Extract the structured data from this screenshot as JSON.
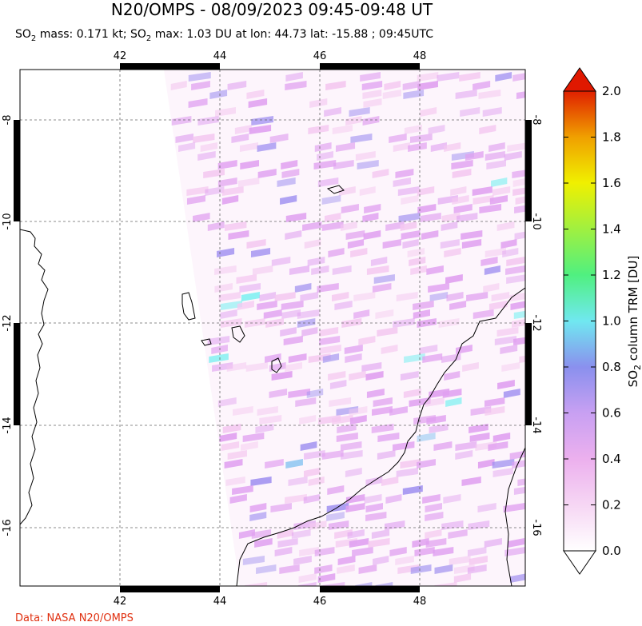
{
  "title": "N20/OMPS - 08/09/2023 09:45-09:48 UT",
  "subtitle": {
    "so2_mass_prefix": "SO",
    "so2_mass_sub": "2",
    "so2_mass_text": " mass: 0.171 kt; SO",
    "so2_max_sub": "2",
    "so2_max_text": " max: 1.03 DU at lon: 44.73 lat: -15.88 ; 09:45UTC"
  },
  "credit": "Data: NASA N20/OMPS",
  "map": {
    "lon_ticks": [
      "42",
      "44",
      "46",
      "48"
    ],
    "lat_ticks": [
      "-8",
      "-10",
      "-12",
      "-14",
      "-16"
    ],
    "gridlines": true,
    "colors": {
      "frame": "#000000",
      "grid": "#666666",
      "land": "#000000"
    }
  },
  "colorbar": {
    "label_main": "SO",
    "label_sub": "2",
    "label_rest": " column TRM [DU]",
    "ticks": [
      "0.0",
      "0.2",
      "0.4",
      "0.6",
      "0.8",
      "1.0",
      "1.2",
      "1.4",
      "1.6",
      "1.8",
      "2.0"
    ],
    "stops": [
      "#ffffff",
      "#f4c8f0",
      "#e0a0f0",
      "#a090f0",
      "#80c0f0",
      "#70f0f0",
      "#60f060",
      "#c0f040",
      "#f0f000",
      "#f0a000",
      "#f04000",
      "#e00000"
    ]
  }
}
